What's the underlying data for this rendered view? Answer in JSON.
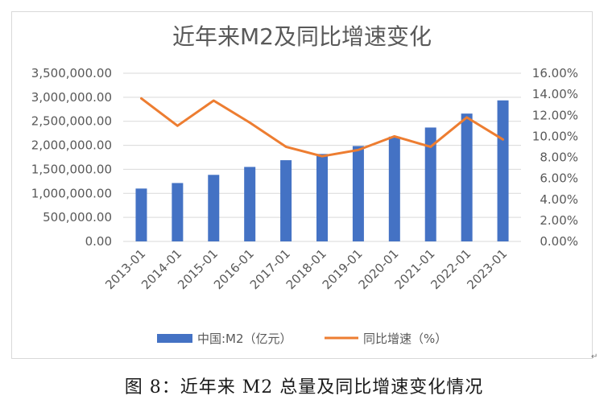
{
  "caption": "图 8：近年来 M2 总量及同比增速变化情况",
  "paragraph_mark": "↵",
  "chart_data": {
    "type": "bar",
    "title": "近年来M2及同比增速变化",
    "categories": [
      "2013-01",
      "2014-01",
      "2015-01",
      "2016-01",
      "2017-01",
      "2018-01",
      "2019-01",
      "2020-01",
      "2021-01",
      "2022-01",
      "2023-01"
    ],
    "series": [
      {
        "name": "中国:M2（亿元）",
        "type": "bar",
        "axis": "left",
        "color": "#4472c4",
        "values": [
          1100000,
          1215000,
          1385000,
          1550000,
          1690000,
          1820000,
          1985000,
          2180000,
          2370000,
          2660000,
          2935000
        ]
      },
      {
        "name": "同比增速（%）",
        "type": "line",
        "axis": "right",
        "color": "#ed7d31",
        "values": [
          13.6,
          11.0,
          13.4,
          11.3,
          9.0,
          8.1,
          8.7,
          10.0,
          9.0,
          11.8,
          9.7
        ]
      }
    ],
    "y_left": {
      "min": 0,
      "max": 3500000,
      "step": 500000,
      "tick_labels": [
        "0.00",
        "500,000.00",
        "1,000,000.00",
        "1,500,000.00",
        "2,000,000.00",
        "2,500,000.00",
        "3,000,000.00",
        "3,500,000.00"
      ]
    },
    "y_right": {
      "min": 0,
      "max": 16,
      "step": 2,
      "tick_labels": [
        "0.00%",
        "2.00%",
        "4.00%",
        "6.00%",
        "8.00%",
        "10.00%",
        "12.00%",
        "14.00%",
        "16.00%"
      ]
    },
    "grid": true,
    "legend": "bottom"
  }
}
